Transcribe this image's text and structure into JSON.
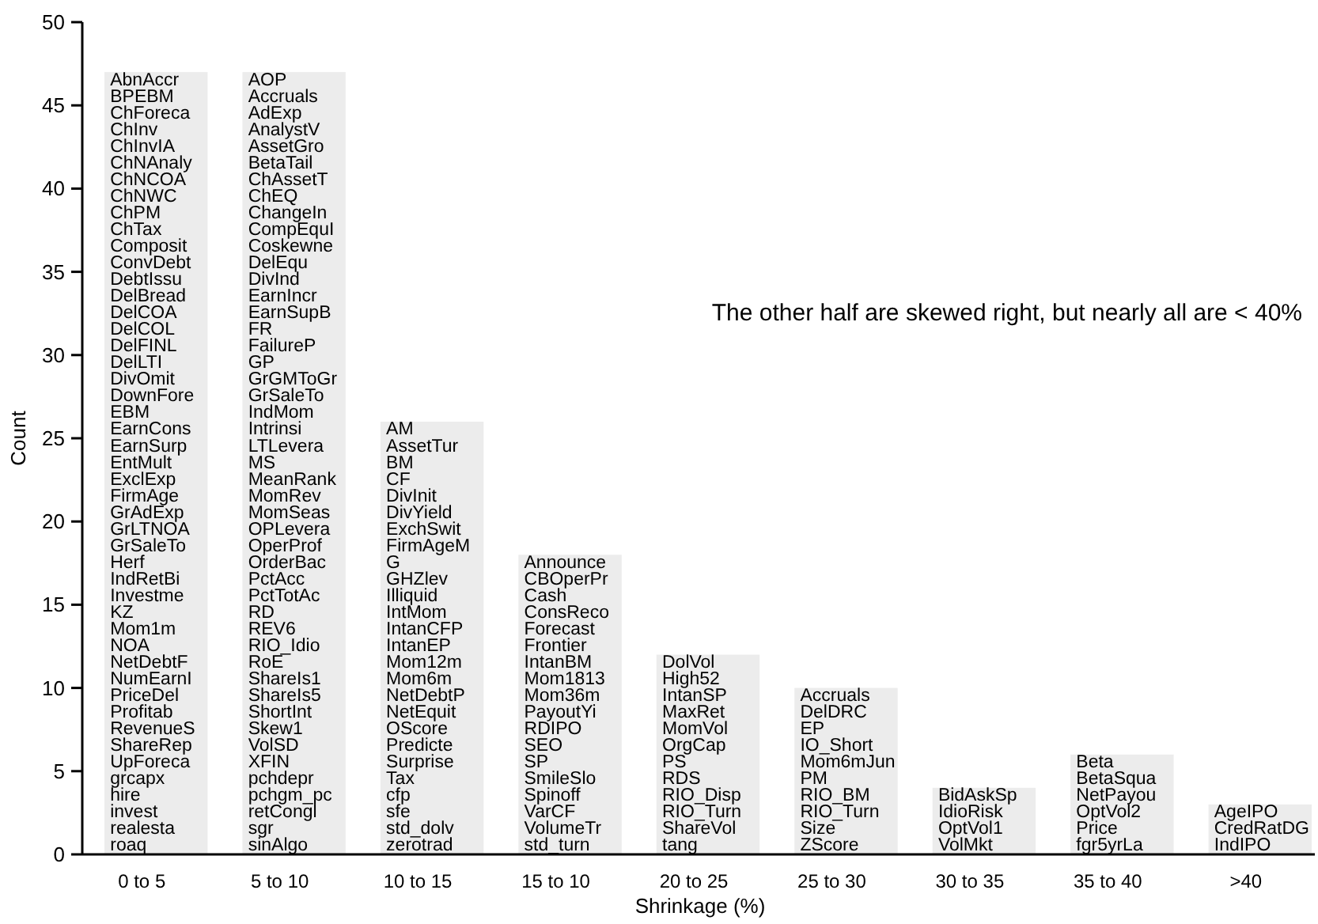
{
  "chart_data": {
    "type": "bar",
    "xlabel": "Shrinkage (%)",
    "ylabel": "Count",
    "categories": [
      "0 to 5",
      "5 to 10",
      "10 to 15",
      "15 to 10",
      "20 to 25",
      "25 to 30",
      "30 to 35",
      "35 to 40",
      ">40"
    ],
    "values": [
      47,
      47,
      26,
      18,
      12,
      10,
      4,
      6,
      3
    ],
    "color": "#ececec",
    "ylim": [
      0,
      50
    ],
    "yticks": [
      0,
      5,
      10,
      15,
      20,
      25,
      30,
      35,
      40,
      45,
      50
    ],
    "grid": false,
    "annotations": [
      "The other half are skewed right, but nearly all are < 40%",
      "AbnAccr",
      "BPEBM",
      "ChForeca",
      "ChInv",
      "ChInvIA",
      "ChNAnaly",
      "ChNCOA",
      "ChNWC",
      "ChPM",
      "ChTax",
      "Composit",
      "ConvDebt",
      "DebtIssu",
      "DelBread",
      "DelCOA",
      "DelCOL",
      "DelFINL",
      "DelLTI",
      "DivOmit",
      "DownFore",
      "EBM",
      "EarnCons",
      "EarnSurp",
      "EntMult",
      "ExclExp",
      "FirmAge",
      "GrAdExp",
      "GrLTNOA",
      "GrSaleTo",
      "Herf",
      "IndRetBi",
      "Investme",
      "KZ",
      "Mom1m",
      "NOA",
      "NetDebtF",
      "NumEarnI",
      "PriceDel",
      "Profitab",
      "RevenueS",
      "ShareRep",
      "UpForeca",
      "grcapx",
      "hire",
      "invest",
      "realesta",
      "roaq",
      "AOP",
      "Accruals",
      "AdExp",
      "AnalystV",
      "AssetGro",
      "BetaTail",
      "ChAssetT",
      "ChEQ",
      "ChangeIn",
      "CompEquI",
      "Coskewne",
      "DelEqu",
      "DivInd",
      "EarnIncr",
      "EarnSupB",
      "FR",
      "FailureP",
      "GP",
      "GrGMToGr",
      "GrSaleTo",
      "IndMom",
      "Intrinsi",
      "LTLevera",
      "MS",
      "MeanRank",
      "MomRev",
      "MomSeas",
      "OPLevera",
      "OperProf",
      "OrderBac",
      "PctAcc",
      "PctTotAc",
      "RD",
      "REV6",
      "RIO_Idio",
      "RoE",
      "ShareIs1",
      "ShareIs5",
      "ShortInt",
      "Skew1",
      "VolSD",
      "XFIN",
      "pchdepr",
      "pchgm_pc",
      "retCongl",
      "sgr",
      "sinAlgo",
      "AM",
      "AssetTur",
      "BM",
      "CF",
      "DivInit",
      "DivYield",
      "ExchSwit",
      "FirmAgeM",
      "G",
      "GHZlev",
      "Illiquid",
      "IntMom",
      "IntanCFP",
      "IntanEP",
      "Mom12m",
      "Mom6m",
      "NetDebtP",
      "NetEquit",
      "OScore",
      "Predicte",
      "Surprise",
      "Tax",
      "cfp",
      "sfe",
      "std_dolv",
      "zerotrad",
      "Announce",
      "CBOperPr",
      "Cash",
      "ConsReco",
      "Forecast",
      "Frontier",
      "IntanBM",
      "Mom1813",
      "Mom36m",
      "PayoutYi",
      "RDIPO",
      "SEO",
      "SP",
      "SmileSlo",
      "Spinoff",
      "VarCF",
      "VolumeTr",
      "std_turn",
      "DolVol",
      "High52",
      "IntanSP",
      "MaxRet",
      "MomVol",
      "OrgCap",
      "PS",
      "RDS",
      "RIO_Disp",
      "RIO_Turn",
      "ShareVol",
      "tang",
      "Accruals",
      "DelDRC",
      "EP",
      "IO_Short",
      "Mom6mJun",
      "PM",
      "RIO_BM",
      "RIO_Turn",
      "Size",
      "ZScore",
      "BidAskSp",
      "IdioRisk",
      "OptVol1",
      "VolMkt",
      "Beta",
      "BetaSqua",
      "NetPayou",
      "OptVol2",
      "Price",
      "fgr5yrLa",
      "AgeIPO",
      "CredRatDG",
      "IndIPO"
    ]
  }
}
